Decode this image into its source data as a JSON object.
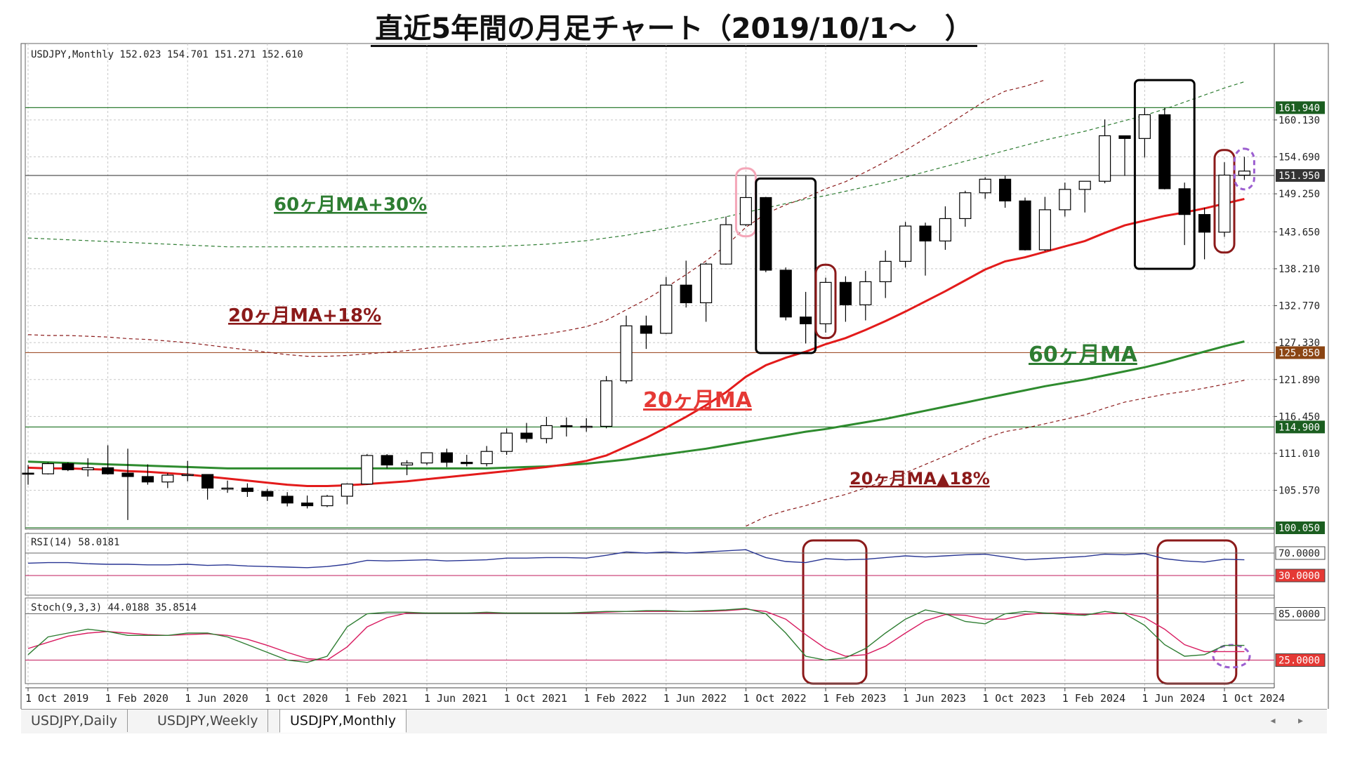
{
  "page": {
    "title": "直近5年間の月足チャート（2019/10/1～　）"
  },
  "chart_data": {
    "type": "candlestick",
    "symbol_header": "USDJPY,Monthly  152.023 154.701 151.271 152.610",
    "price_axis": {
      "ylim": [
        100.05,
        165.6
      ],
      "ticks": [
        "160.130",
        "154.690",
        "149.250",
        "143.650",
        "138.210",
        "132.770",
        "127.330",
        "121.890",
        "116.450",
        "111.010",
        "105.570"
      ],
      "tick_values": [
        160.13,
        154.69,
        149.25,
        143.65,
        138.21,
        132.77,
        127.33,
        121.89,
        116.45,
        111.01,
        105.57
      ]
    },
    "x_labels": [
      "1 Oct 2019",
      "1 Feb 2020",
      "1 Jun 2020",
      "1 Oct 2020",
      "1 Feb 2021",
      "1 Jun 2021",
      "1 Oct 2021",
      "1 Feb 2022",
      "1 Jun 2022",
      "1 Oct 2022",
      "1 Feb 2023",
      "1 Jun 2023",
      "1 Oct 2023",
      "1 Feb 2024",
      "1 Jun 2024",
      "1 Oct 2024"
    ],
    "horizontal_levels": [
      {
        "label": "161.940",
        "value": 161.94,
        "color": "#2e7d32",
        "badge_text": "#ffffff",
        "badge_bg": "#1b5e20"
      },
      {
        "label": "151.950",
        "value": 151.95,
        "color": "#555555",
        "badge_text": "#ffffff",
        "badge_bg": "#333333"
      },
      {
        "label": "125.850",
        "value": 125.85,
        "color": "#a0522d",
        "badge_text": "#ffffff",
        "badge_bg": "#8b4513"
      },
      {
        "label": "114.900",
        "value": 114.9,
        "color": "#2e7d32",
        "badge_text": "#ffffff",
        "badge_bg": "#1b5e20"
      },
      {
        "label": "100.050",
        "value": 100.05,
        "color": "#2e7d32",
        "badge_text": "#ffffff",
        "badge_bg": "#1b5e20"
      }
    ],
    "candles": [
      [
        108.1,
        109.3,
        106.4,
        108.0
      ],
      [
        108.0,
        109.7,
        107.9,
        109.5
      ],
      [
        109.5,
        109.7,
        108.4,
        108.6
      ],
      [
        108.6,
        110.3,
        107.6,
        108.9
      ],
      [
        108.9,
        112.2,
        107.9,
        108.0
      ],
      [
        108.1,
        111.7,
        101.2,
        107.6
      ],
      [
        107.6,
        109.4,
        106.4,
        106.8
      ],
      [
        106.8,
        108.1,
        105.9,
        107.8
      ],
      [
        107.8,
        109.9,
        106.9,
        107.9
      ],
      [
        107.9,
        107.9,
        104.2,
        105.9
      ],
      [
        105.9,
        107.0,
        105.2,
        105.9
      ],
      [
        105.9,
        106.6,
        104.6,
        105.4
      ],
      [
        105.4,
        105.8,
        104.0,
        104.7
      ],
      [
        104.7,
        105.3,
        103.2,
        103.7
      ],
      [
        103.7,
        104.8,
        102.9,
        103.3
      ],
      [
        103.3,
        104.9,
        103.1,
        104.7
      ],
      [
        104.7,
        106.6,
        103.5,
        106.5
      ],
      [
        106.5,
        110.9,
        106.4,
        110.7
      ],
      [
        110.7,
        110.9,
        108.8,
        109.3
      ],
      [
        109.3,
        110.0,
        107.8,
        109.6
      ],
      [
        109.6,
        110.9,
        109.3,
        111.1
      ],
      [
        111.1,
        111.7,
        109.0,
        109.7
      ],
      [
        109.7,
        110.8,
        109.1,
        109.5
      ],
      [
        109.5,
        112.1,
        109.1,
        111.3
      ],
      [
        111.3,
        114.7,
        110.8,
        114.0
      ],
      [
        114.0,
        115.5,
        112.6,
        113.2
      ],
      [
        113.2,
        116.4,
        112.5,
        115.1
      ],
      [
        115.1,
        116.3,
        113.5,
        115.0
      ],
      [
        115.0,
        116.2,
        114.2,
        115.0
      ],
      [
        115.0,
        122.4,
        114.7,
        121.7
      ],
      [
        121.7,
        131.3,
        121.3,
        129.8
      ],
      [
        129.8,
        131.3,
        126.4,
        128.7
      ],
      [
        128.7,
        137.0,
        128.6,
        135.8
      ],
      [
        135.8,
        139.4,
        132.5,
        133.2
      ],
      [
        133.2,
        139.1,
        130.4,
        138.9
      ],
      [
        138.9,
        145.9,
        138.8,
        144.7
      ],
      [
        144.7,
        151.9,
        144.5,
        148.7
      ],
      [
        148.7,
        148.8,
        137.7,
        138.0
      ],
      [
        138.0,
        138.4,
        130.6,
        131.1
      ],
      [
        131.1,
        134.8,
        127.2,
        130.1
      ],
      [
        130.1,
        136.9,
        128.8,
        136.2
      ],
      [
        136.2,
        137.1,
        130.4,
        132.9
      ],
      [
        132.9,
        137.9,
        130.6,
        136.3
      ],
      [
        136.3,
        140.9,
        133.9,
        139.3
      ],
      [
        139.3,
        145.1,
        138.4,
        144.5
      ],
      [
        144.5,
        145.0,
        137.2,
        142.3
      ],
      [
        142.3,
        147.4,
        141.0,
        145.6
      ],
      [
        145.6,
        149.7,
        144.4,
        149.4
      ],
      [
        149.4,
        151.7,
        148.5,
        151.4
      ],
      [
        151.4,
        151.9,
        147.2,
        148.2
      ],
      [
        148.2,
        148.7,
        140.9,
        141.0
      ],
      [
        141.0,
        148.8,
        140.8,
        146.9
      ],
      [
        146.9,
        150.9,
        145.9,
        149.9
      ],
      [
        149.9,
        151.0,
        146.5,
        151.1
      ],
      [
        151.1,
        160.2,
        150.8,
        157.8
      ],
      [
        157.8,
        157.8,
        151.9,
        157.4
      ],
      [
        157.4,
        161.9,
        154.6,
        160.9
      ],
      [
        160.9,
        161.9,
        149.9,
        150.0
      ],
      [
        150.0,
        150.9,
        141.7,
        146.2
      ],
      [
        146.2,
        147.2,
        139.6,
        143.6
      ],
      [
        143.6,
        153.9,
        142.9,
        152.0
      ],
      [
        152.0,
        154.7,
        151.3,
        152.6
      ]
    ],
    "ma20": [
      108.9,
      108.8,
      108.8,
      108.7,
      108.6,
      108.4,
      108.3,
      108.1,
      107.9,
      107.6,
      107.3,
      107.0,
      106.7,
      106.4,
      106.2,
      106.2,
      106.3,
      106.5,
      106.7,
      106.9,
      107.2,
      107.5,
      107.8,
      108.1,
      108.4,
      108.7,
      109.0,
      109.4,
      109.9,
      110.7,
      112.0,
      113.3,
      114.8,
      116.4,
      118.1,
      120.0,
      122.3,
      124.0,
      125.1,
      126.0,
      127.1,
      128.0,
      129.2,
      130.5,
      131.9,
      133.4,
      134.9,
      136.5,
      138.1,
      139.3,
      139.9,
      140.7,
      141.5,
      142.3,
      143.5,
      144.6,
      145.3,
      146.0,
      146.5,
      147.1,
      147.8,
      148.5
    ],
    "ma60": [
      109.8,
      109.7,
      109.6,
      109.5,
      109.4,
      109.3,
      109.2,
      109.1,
      109.0,
      108.9,
      108.8,
      108.8,
      108.8,
      108.8,
      108.8,
      108.8,
      108.8,
      108.8,
      108.8,
      108.8,
      108.8,
      108.8,
      108.8,
      108.8,
      108.9,
      109.0,
      109.1,
      109.3,
      109.5,
      109.8,
      110.1,
      110.5,
      110.9,
      111.3,
      111.7,
      112.2,
      112.7,
      113.2,
      113.7,
      114.2,
      114.6,
      115.1,
      115.6,
      116.1,
      116.7,
      117.3,
      117.9,
      118.5,
      119.1,
      119.7,
      120.3,
      120.9,
      121.4,
      121.9,
      122.5,
      123.1,
      123.7,
      124.4,
      125.2,
      126.0,
      126.8,
      127.5
    ],
    "envelopes": {
      "ma20_plus_18": "1.18",
      "ma20_minus_18": "0.82",
      "ma60_plus_30": "1.30"
    },
    "annotations": [
      {
        "text": "60ヶ月MA+30%",
        "color": "#2e7d32"
      },
      {
        "text": "20ヶ月MA+18%",
        "color": "#8b1a1a"
      },
      {
        "text": "60ヶ月MA",
        "color": "#2e7d32"
      },
      {
        "text": "20ヶ月MA",
        "color": "#e53935"
      },
      {
        "text": "20ヶ月MA▲18%",
        "color": "#8b1a1a"
      }
    ],
    "rsi": {
      "header": "RSI(14) 58.0181",
      "levels": [
        "70.0000",
        "30.0000"
      ],
      "values": [
        52,
        53,
        53,
        51,
        50,
        50,
        49,
        49,
        50,
        48,
        49,
        47,
        46,
        45,
        44,
        46,
        50,
        57,
        56,
        57,
        58,
        56,
        57,
        58,
        61,
        61,
        62,
        62,
        61,
        66,
        72,
        70,
        72,
        70,
        72,
        74,
        76,
        62,
        55,
        53,
        60,
        58,
        59,
        62,
        65,
        63,
        65,
        67,
        68,
        63,
        58,
        60,
        62,
        64,
        68,
        67,
        69,
        60,
        56,
        54,
        59,
        58
      ]
    },
    "stoch": {
      "header": "Stoch(9,3,3) 44.0188 35.8514",
      "levels": [
        "85.0000",
        "25.0000"
      ],
      "k": [
        32,
        55,
        60,
        65,
        62,
        57,
        57,
        57,
        60,
        60,
        55,
        45,
        35,
        25,
        22,
        30,
        68,
        85,
        87,
        87,
        86,
        86,
        86,
        87,
        86,
        86,
        86,
        86,
        87,
        88,
        88,
        89,
        89,
        88,
        89,
        90,
        92,
        85,
        60,
        30,
        25,
        28,
        40,
        60,
        78,
        90,
        85,
        75,
        72,
        85,
        88,
        86,
        84,
        83,
        88,
        85,
        70,
        45,
        30,
        32,
        44,
        44
      ],
      "d": [
        40,
        48,
        56,
        60,
        62,
        60,
        58,
        57,
        58,
        59,
        57,
        52,
        44,
        35,
        27,
        25,
        42,
        68,
        80,
        86,
        86,
        86,
        86,
        86,
        86,
        86,
        86,
        86,
        86,
        87,
        88,
        88,
        88,
        88,
        88,
        89,
        91,
        88,
        78,
        58,
        40,
        30,
        32,
        43,
        60,
        76,
        84,
        83,
        78,
        78,
        84,
        86,
        86,
        84,
        85,
        86,
        80,
        65,
        45,
        36,
        36,
        36
      ]
    }
  },
  "tabs": [
    {
      "label": "USDJPY,Daily"
    },
    {
      "label": "USDJPY,Weekly"
    },
    {
      "label": "USDJPY,Monthly",
      "active": true
    }
  ],
  "tab_scroll": "◂ ▸"
}
